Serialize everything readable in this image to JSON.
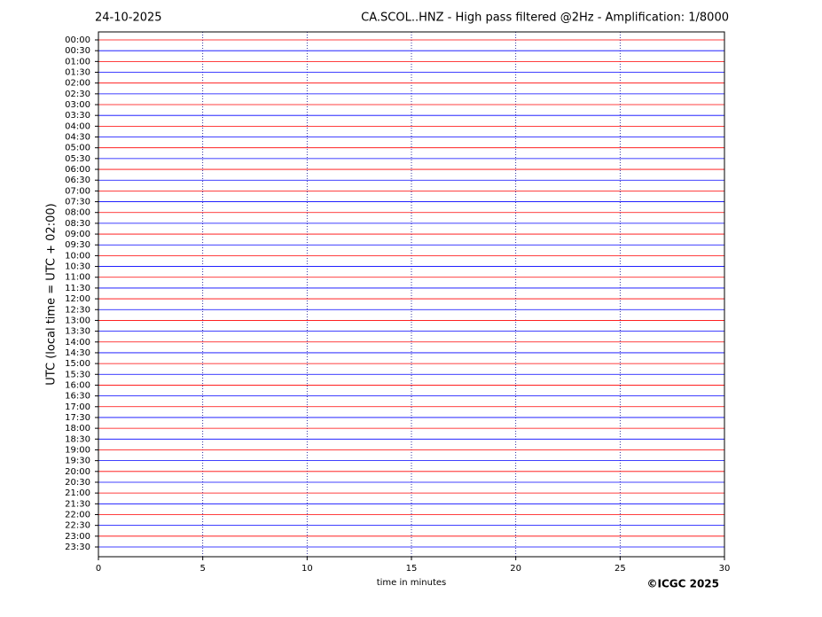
{
  "chart_data": {
    "type": "helicorder",
    "date": "24-10-2025",
    "title": "CA.SCOL..HNZ - High pass filtered @2Hz - Amplification: 1/8000",
    "y_label": "UTC (local time = UTC + 02:00)",
    "x_label": "time in minutes",
    "credit": "©ICGC 2025",
    "categories": [
      "00:00",
      "00:30",
      "01:00",
      "01:30",
      "02:00",
      "02:30",
      "03:00",
      "03:30",
      "04:00",
      "04:30",
      "05:00",
      "05:30",
      "06:00",
      "06:30",
      "07:00",
      "07:30",
      "08:00",
      "08:30",
      "09:00",
      "09:30",
      "10:00",
      "10:30",
      "11:00",
      "11:30",
      "12:00",
      "12:30",
      "13:00",
      "13:30",
      "14:00",
      "14:30",
      "15:00",
      "15:30",
      "16:00",
      "16:30",
      "17:00",
      "17:30",
      "18:00",
      "18:30",
      "19:00",
      "19:30",
      "20:00",
      "20:30",
      "21:00",
      "21:30",
      "22:00",
      "22:30",
      "23:00",
      "23:30"
    ],
    "trace_colors": [
      "#ff0000",
      "#0000ff"
    ],
    "xlim": [
      0,
      30
    ],
    "xticks": [
      0,
      5,
      10,
      15,
      20,
      25,
      30
    ],
    "grid": true
  }
}
